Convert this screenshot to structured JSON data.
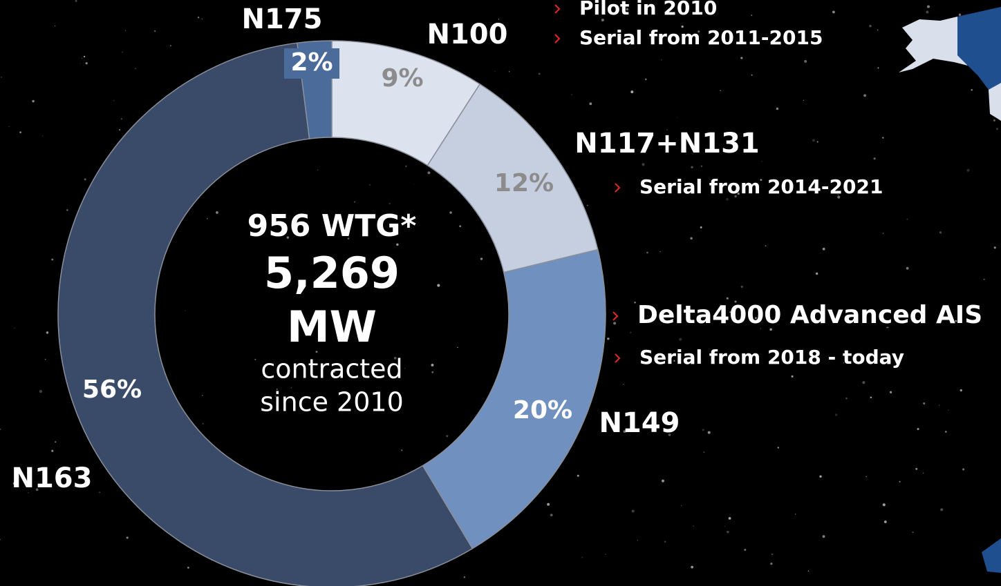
{
  "chart_data": {
    "type": "donut",
    "categories": [
      "N100",
      "N117+N131",
      "N149",
      "N163",
      "N175"
    ],
    "values": [
      9,
      12,
      20,
      56,
      2
    ],
    "value_labels": [
      "9%",
      "12%",
      "20%",
      "56%",
      "2%"
    ],
    "colors": [
      "#dde3ee",
      "#c5cfe0",
      "#7090bf",
      "#3a4b69",
      "#4b6b9b"
    ],
    "center_text": [
      "956 WTG*",
      "5,269",
      "MW",
      "contracted",
      "since 2010"
    ],
    "annotations": [
      "Pilot in 2010",
      "Serial from 2011-2015",
      "Serial from 2014-2021",
      "Delta4000 Advanced AIS",
      "Serial from 2018 - today"
    ]
  }
}
